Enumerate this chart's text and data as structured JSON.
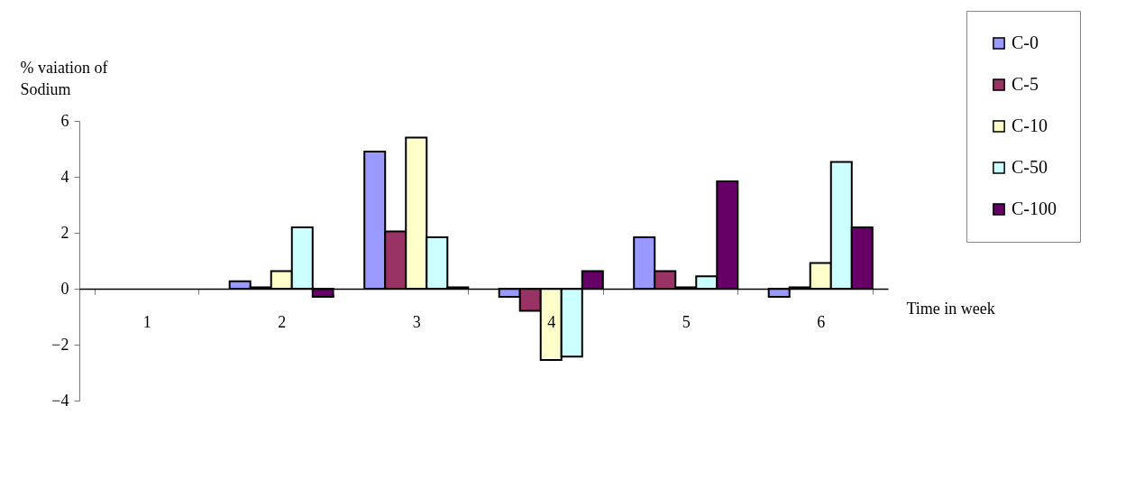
{
  "chart_data": {
    "type": "bar",
    "xlabel": "Time in week",
    "ylabel": "% vaiation of Sodium",
    "categories": [
      "1",
      "2",
      "3",
      "4",
      "5",
      "6"
    ],
    "series": [
      {
        "name": "C-0",
        "color": "#9999ff",
        "values": [
          null,
          0.27,
          4.9,
          -0.29,
          1.84,
          -0.29
        ]
      },
      {
        "name": "C-5",
        "color": "#993366",
        "values": [
          null,
          0.05,
          2.05,
          -0.79,
          0.63,
          0.05
        ]
      },
      {
        "name": "C-10",
        "color": "#ffffcc",
        "values": [
          null,
          0.63,
          5.4,
          -2.55,
          0.05,
          0.92
        ]
      },
      {
        "name": "C-50",
        "color": "#ccffff",
        "values": [
          null,
          2.19,
          1.84,
          -2.43,
          0.44,
          4.53
        ]
      },
      {
        "name": "C-100",
        "color": "#660066",
        "values": [
          null,
          -0.29,
          0.05,
          0.63,
          3.84,
          2.19
        ]
      }
    ],
    "ylim": [
      -4,
      6
    ],
    "yticks": [
      -4,
      -2,
      0,
      2,
      4,
      6
    ],
    "grid": false,
    "legend": "top right"
  }
}
